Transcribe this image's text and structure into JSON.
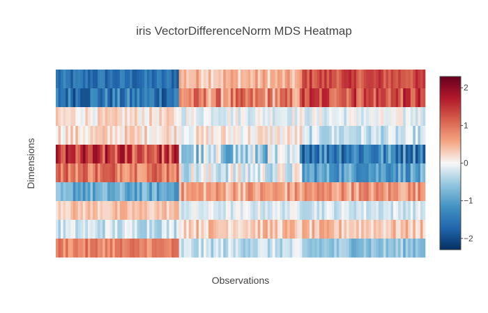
{
  "chart_data": {
    "type": "heatmap",
    "title": "iris VectorDifferenceNorm MDS Heatmap",
    "xlabel": "Observations",
    "ylabel": "Dimensions",
    "n_observations": 150,
    "n_dimensions": 10,
    "zmin": -2.3,
    "zmax": 2.3,
    "colorscale": "RdBu",
    "colorbar": {
      "ticks": [
        2,
        1,
        0,
        -1,
        -2
      ],
      "tick_labels": [
        "2",
        "1",
        "0",
        "−1",
        "−2"
      ]
    },
    "group_boundaries": [
      50,
      100
    ],
    "dimension_group_means": [
      [
        -1.6,
        0.45,
        1.3
      ],
      [
        -1.5,
        0.8,
        1.3
      ],
      [
        0.15,
        -0.05,
        -0.1
      ],
      [
        0.2,
        0.1,
        -0.3
      ],
      [
        1.35,
        -0.5,
        -1.3
      ],
      [
        1.0,
        -0.15,
        -1.0
      ],
      [
        -0.9,
        0.6,
        0.7
      ],
      [
        0.35,
        -0.15,
        -0.2
      ],
      [
        -0.25,
        0.35,
        0.35
      ],
      [
        0.85,
        -0.3,
        -0.6
      ]
    ],
    "dimension_noise": [
      0.22,
      0.35,
      0.18,
      0.2,
      0.45,
      0.3,
      0.25,
      0.15,
      0.2,
      0.2
    ]
  }
}
